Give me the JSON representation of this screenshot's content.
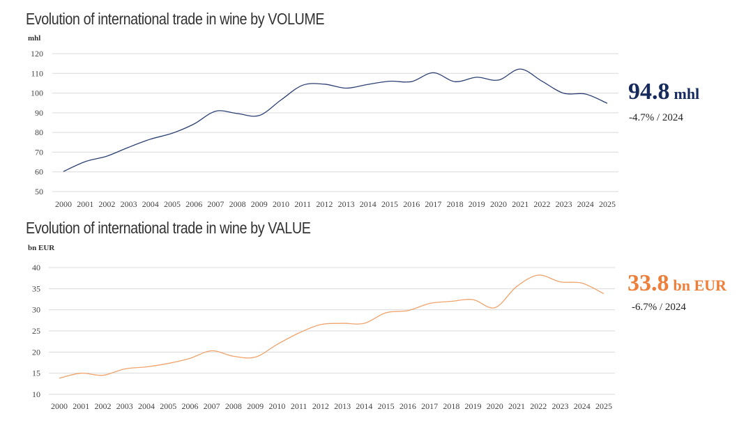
{
  "volume": {
    "title": "Evolution of international trade in wine by VOLUME",
    "unit": "mhl",
    "headline_value": "94.8",
    "headline_unit": "mhl",
    "change": "-4.7% / 2024",
    "color": "#2b3f73"
  },
  "value": {
    "title": "Evolution of international trade in wine by VALUE",
    "unit": "bn EUR",
    "headline_value": "33.8",
    "headline_unit": "bn EUR",
    "change": "-6.7% / 2024",
    "color": "#f0a36b"
  },
  "chart_data": [
    {
      "type": "line",
      "title": "Evolution of international trade in wine by VOLUME",
      "ylabel": "mhl",
      "xlabel": "",
      "categories": [
        "2000",
        "2001",
        "2002",
        "2003",
        "2004",
        "2005",
        "2006",
        "2007",
        "2008",
        "2009",
        "2010",
        "2011",
        "2012",
        "2013",
        "2014",
        "2015",
        "2016",
        "2017",
        "2018",
        "2019",
        "2020",
        "2021",
        "2022",
        "2023",
        "2024",
        "2025"
      ],
      "series": [
        {
          "values": [
            60.2,
            65.2,
            68.0,
            72.5,
            76.6,
            79.6,
            84.3,
            90.8,
            89.6,
            88.6,
            96.5,
            104.0,
            104.5,
            102.5,
            104.4,
            106.0,
            105.8,
            110.3,
            105.8,
            108.0,
            106.6,
            112.2,
            106.0,
            99.9,
            99.5,
            94.8
          ]
        }
      ],
      "ylim": [
        50,
        120
      ],
      "yticks": [
        50,
        60,
        70,
        80,
        90,
        100,
        110,
        120
      ],
      "grid": true,
      "legend": "none"
    },
    {
      "type": "line",
      "title": "Evolution of international trade in wine by VALUE",
      "ylabel": "bn EUR",
      "xlabel": "",
      "categories": [
        "2000",
        "2001",
        "2002",
        "2003",
        "2004",
        "2005",
        "2006",
        "2007",
        "2008",
        "2009",
        "2010",
        "2011",
        "2012",
        "2013",
        "2014",
        "2015",
        "2016",
        "2017",
        "2018",
        "2019",
        "2020",
        "2021",
        "2022",
        "2023",
        "2024",
        "2025"
      ],
      "series": [
        {
          "values": [
            13.8,
            15.0,
            14.5,
            16.0,
            16.5,
            17.3,
            18.5,
            20.3,
            19.0,
            18.8,
            21.8,
            24.5,
            26.5,
            26.8,
            26.8,
            29.3,
            29.8,
            31.5,
            32.0,
            32.4,
            30.5,
            35.5,
            38.2,
            36.6,
            36.3,
            33.8
          ]
        }
      ],
      "ylim": [
        10,
        40
      ],
      "yticks": [
        10,
        15,
        20,
        25,
        30,
        35,
        40
      ],
      "grid": true,
      "legend": "none"
    }
  ]
}
